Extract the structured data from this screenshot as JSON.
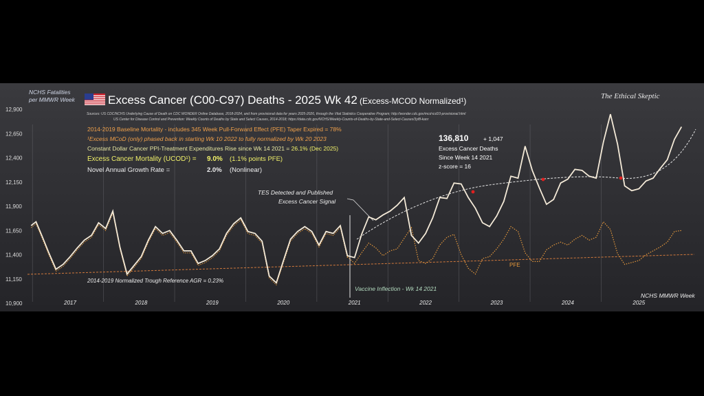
{
  "chart_data": {
    "type": "line",
    "title": "Excess Cancer (C00-C97) Deaths - 2025 Wk 42",
    "title_suffix": "(Excess-MCOD  Normalized¹)",
    "ylabel_line1": "NCHS Fatalities",
    "ylabel_line2": "per MMWR Week",
    "xlabel": "NCHS MMWR Week",
    "watermark": "The Ethical Skeptic",
    "sources": [
      "Sources:  US CDC/NCHS Underlying Cause of Death on CDC WONDER Online Database, 2018-2024, and from provisional data for years 2025-2026, through the Vital Statistics Cooperative Program; http://wonder.cdc.gov/mcd-icd10-provisional.html",
      "US Center for Disease Control and Prevention: Weekly Counts of Deaths by State and Select Causes, 2014-2018; https://data.cdc.gov/NCHS/Weekly-Counts-of-Deaths-by-State-and-Select-Causes/3yf8-kanr"
    ],
    "y_ticks": [
      "12,900",
      "12,650",
      "12,400",
      "12,150",
      "11,900",
      "11,650",
      "11,400",
      "11,150",
      "10,900"
    ],
    "ylim": [
      10900,
      12900
    ],
    "x_ticks": [
      "2017",
      "2018",
      "2019",
      "2020",
      "2021",
      "2022",
      "2023",
      "2024",
      "2025"
    ],
    "xlim": [
      2016.5,
      2025.9
    ],
    "annotations": {
      "baseline": "2014-2019 Baseline Mortality - includes 345 Week Pull-Forward Effect (PFE) Taper Expired =   78%",
      "phased": "¹Excess  MCoD (only) phased back in starting  Wk 10 2022 to fully normalized  by Wk 20 2023",
      "ppi_text": "Constant Dollar Cancer PPI-Treatment Expenditures Rise since Wk 14 2021 = ",
      "ppi_value": "26.1% (Dec 2025)",
      "ucod_label": "Excess Cancer Mortality (UCOD¹) =",
      "ucod_value": "9.0%",
      "ucod_pfe": "(1.1%  points PFE)",
      "growth_label": "Novel Annual Growth Rate  =",
      "growth_value": "2.0%",
      "growth_note": "(Nonlinear)",
      "total": "136,810",
      "total_delta": "+ 1,047",
      "total_label1": "Excess Cancer Deaths",
      "total_label2": "Since Week 14 2021",
      "zscore": "z-score =  16",
      "tes_line1": "TES Detected and Published",
      "tes_line2": "Excess Cancer Signal",
      "trough": "2014-2019 Normalized Trough Reference AGR = 0.23%",
      "vaccine": "Vaccine Inflection - Wk 14 2021",
      "pfe": "PFE"
    },
    "series": [
      {
        "name": "",
        "color": "#f4ead8",
        "x": [
          2016.55,
          2016.62,
          2016.7,
          2016.8,
          2016.9,
          2017.0,
          2017.1,
          2017.2,
          2017.3,
          2017.4,
          2017.5,
          2017.6,
          2017.7,
          2017.8,
          2017.9,
          2018.0,
          2018.1,
          2018.2,
          2018.3,
          2018.4,
          2018.5,
          2018.6,
          2018.7,
          2018.8,
          2018.9,
          2019.0,
          2019.1,
          2019.2,
          2019.3,
          2019.4,
          2019.5,
          2019.6,
          2019.7,
          2019.8,
          2019.9,
          2020.0,
          2020.1,
          2020.2,
          2020.3,
          2020.4,
          2020.5,
          2020.6,
          2020.7,
          2020.8,
          2020.9,
          2021.0,
          2021.1,
          2021.2,
          2021.3,
          2021.4,
          2021.5,
          2021.6,
          2021.7,
          2021.8,
          2021.9,
          2022.0,
          2022.1,
          2022.2,
          2022.3,
          2022.4,
          2022.5,
          2022.6,
          2022.7,
          2022.8,
          2022.9,
          2023.0,
          2023.1,
          2023.2,
          2023.3,
          2023.4,
          2023.5,
          2023.6,
          2023.7,
          2023.8,
          2023.9,
          2024.0,
          2024.1,
          2024.2,
          2024.3,
          2024.4,
          2024.5,
          2024.6,
          2024.7,
          2024.8,
          2024.9,
          2025.0,
          2025.1,
          2025.2,
          2025.3,
          2025.4,
          2025.5,
          2025.6,
          2025.7
        ],
        "y": [
          11700,
          11740,
          11600,
          11420,
          11250,
          11300,
          11380,
          11470,
          11550,
          11600,
          11730,
          11670,
          11850,
          11480,
          11200,
          11290,
          11380,
          11550,
          11690,
          11620,
          11650,
          11550,
          11440,
          11440,
          11310,
          11340,
          11390,
          11460,
          11620,
          11720,
          11780,
          11640,
          11620,
          11540,
          11180,
          11110,
          11340,
          11560,
          11640,
          11690,
          11640,
          11500,
          11640,
          11620,
          11700,
          11390,
          11370,
          11610,
          11790,
          11760,
          11810,
          11850,
          11910,
          11990,
          11600,
          11520,
          11620,
          11780,
          11990,
          11980,
          12140,
          12130,
          11990,
          11880,
          11730,
          11690,
          11800,
          11950,
          12210,
          12190,
          12520,
          12270,
          12090,
          11920,
          11970,
          12140,
          12180,
          12280,
          12270,
          12210,
          12190,
          12560,
          12850,
          12540,
          12110,
          12060,
          12080,
          12160,
          12190,
          12290,
          12380,
          12590,
          12720
        ]
      },
      {
        "name": "",
        "color": "#e89a3c",
        "x": [
          2021.0,
          2021.1,
          2021.2,
          2021.3,
          2021.4,
          2021.5,
          2021.6,
          2021.7,
          2021.8,
          2021.9,
          2022.0,
          2022.1,
          2022.2,
          2022.3,
          2022.4,
          2022.5,
          2022.6,
          2022.7,
          2022.8,
          2022.9,
          2023.0,
          2023.1,
          2023.2,
          2023.3,
          2023.4,
          2023.5,
          2023.6,
          2023.7,
          2023.8,
          2023.9,
          2024.0,
          2024.1,
          2024.2,
          2024.3,
          2024.4,
          2024.5,
          2024.6,
          2024.7,
          2024.8,
          2024.9,
          2025.0,
          2025.1,
          2025.2,
          2025.3,
          2025.4,
          2025.5,
          2025.6,
          2025.7
        ],
        "y": [
          11380,
          11310,
          11420,
          11520,
          11470,
          11390,
          11440,
          11460,
          11570,
          11680,
          11340,
          11310,
          11360,
          11500,
          11580,
          11610,
          11400,
          11260,
          11200,
          11360,
          11380,
          11460,
          11560,
          11690,
          11640,
          11420,
          11330,
          11330,
          11450,
          11500,
          11530,
          11500,
          11560,
          11600,
          11550,
          11580,
          11740,
          11660,
          11410,
          11300,
          11320,
          11340,
          11400,
          11440,
          11480,
          11530,
          11640,
          11650
        ]
      }
    ]
  }
}
